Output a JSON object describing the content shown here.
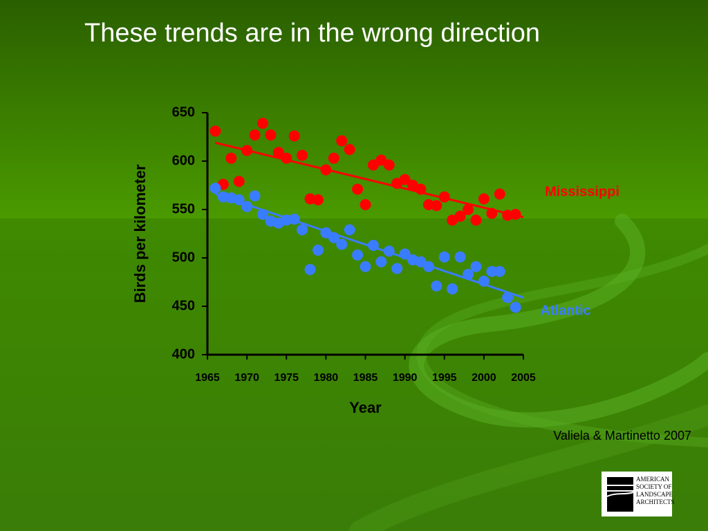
{
  "chart_data": {
    "type": "scatter",
    "title": "These trends are in the wrong direction",
    "xlabel": "Year",
    "ylabel": "Birds per kilometer",
    "source": "Valiela & Martinetto 2007",
    "xlim": [
      1965,
      2005
    ],
    "xticks": [
      1965,
      1970,
      1975,
      1980,
      1985,
      1990,
      1995,
      2000,
      2005
    ],
    "ylim": [
      400,
      650
    ],
    "yticks": [
      400,
      450,
      500,
      550,
      600,
      650
    ],
    "series": [
      {
        "name": "Mississippi",
        "color": "#ff0000",
        "x": [
          1966,
          1967,
          1968,
          1969,
          1970,
          1971,
          1972,
          1973,
          1974,
          1975,
          1976,
          1977,
          1978,
          1979,
          1980,
          1981,
          1982,
          1983,
          1984,
          1985,
          1986,
          1987,
          1988,
          1989,
          1990,
          1991,
          1992,
          1993,
          1994,
          1995,
          1996,
          1997,
          1998,
          1999,
          2000,
          2001,
          2002,
          2003,
          2004
        ],
        "values": [
          631,
          576,
          603,
          579,
          611,
          627,
          639,
          627,
          609,
          603,
          626,
          606,
          561,
          560,
          591,
          603,
          621,
          612,
          571,
          555,
          596,
          601,
          596,
          577,
          581,
          575,
          571,
          555,
          554,
          563,
          539,
          543,
          550,
          539,
          561,
          546,
          566,
          544,
          545
        ],
        "trend": {
          "x": [
            1966,
            2005
          ],
          "values": [
            619,
            542
          ]
        }
      },
      {
        "name": "Atlantic",
        "color": "#3a7cff",
        "x": [
          1966,
          1967,
          1968,
          1969,
          1970,
          1971,
          1972,
          1973,
          1974,
          1975,
          1976,
          1977,
          1978,
          1979,
          1980,
          1981,
          1982,
          1983,
          1984,
          1985,
          1986,
          1987,
          1988,
          1989,
          1990,
          1991,
          1992,
          1993,
          1994,
          1995,
          1996,
          1997,
          1998,
          1999,
          2000,
          2001,
          2002,
          2003,
          2004
        ],
        "values": [
          572,
          563,
          562,
          560,
          553,
          564,
          545,
          538,
          536,
          539,
          540,
          529,
          488,
          508,
          526,
          521,
          514,
          529,
          503,
          491,
          513,
          496,
          507,
          489,
          504,
          498,
          496,
          491,
          471,
          501,
          468,
          501,
          483,
          491,
          476,
          486,
          486,
          459,
          449
        ],
        "trend": {
          "x": [
            1966,
            2005
          ],
          "values": [
            566,
            459
          ]
        }
      }
    ]
  },
  "logo": [
    "AMERICAN",
    "SOCIETY OF",
    "LANDSCAPE",
    "ARCHITECTS"
  ]
}
